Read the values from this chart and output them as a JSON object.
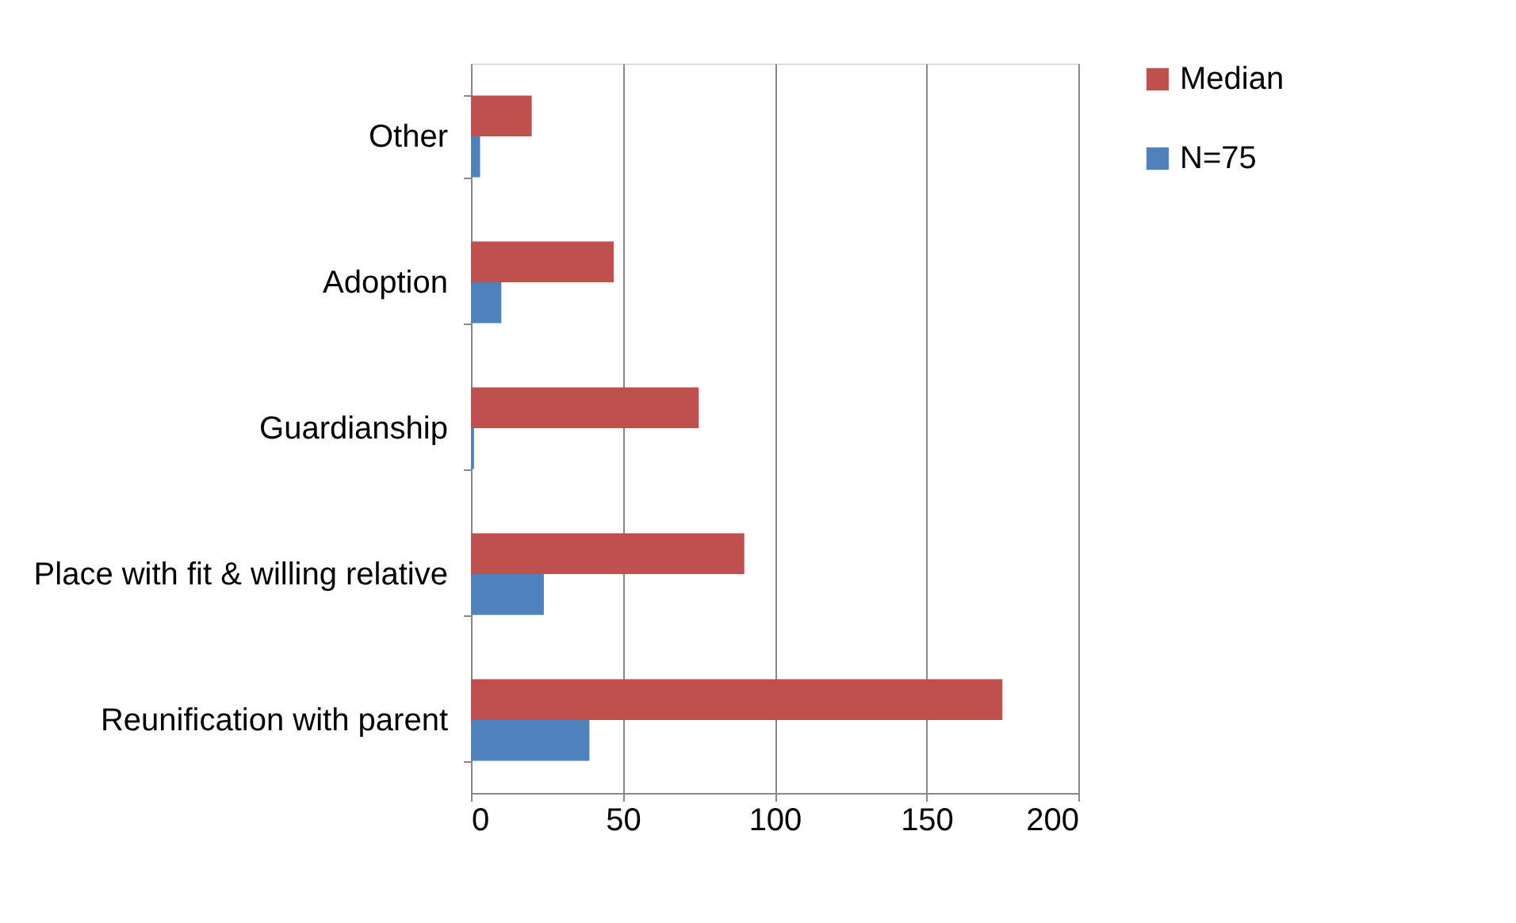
{
  "chart_data": {
    "type": "bar",
    "orientation": "horizontal",
    "categories": [
      "Other",
      "Adoption",
      "Guardianship",
      "Place with fit & willing relative",
      "Reunification with parent"
    ],
    "series": [
      {
        "name": "Median",
        "color": "#c0504d",
        "values": [
          20,
          47,
          75,
          90,
          175
        ]
      },
      {
        "name": "N=75",
        "color": "#4f81bd",
        "values": [
          3,
          10,
          1,
          24,
          39
        ]
      }
    ],
    "xlim": [
      0,
      200
    ],
    "xticks": [
      0,
      50,
      100,
      150,
      200
    ],
    "grid": "x",
    "legend": "right"
  }
}
